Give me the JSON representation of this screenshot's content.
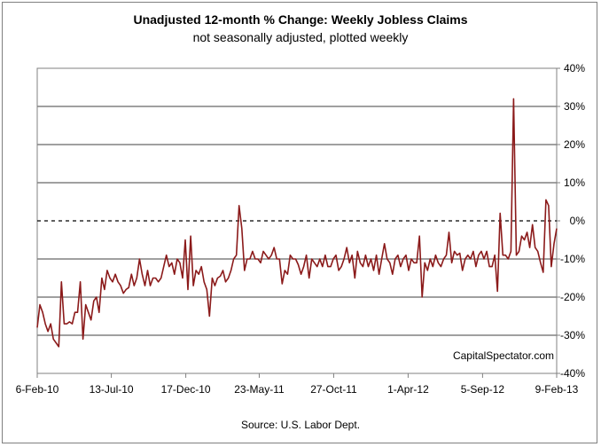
{
  "title": "Unadjusted 12-month %  Change: Weekly Jobless Claims",
  "subtitle": "not seasonally adjusted, plotted weekly",
  "source": "Source: U.S. Labor Dept.",
  "watermark": "CapitalSpectator.com",
  "colors": {
    "series": "#8B1A1A",
    "grid": "#000000",
    "zero_line": "#000000"
  },
  "chart_data": {
    "type": "line",
    "title": "Unadjusted 12-month %  Change: Weekly Jobless Claims",
    "subtitle": "not seasonally adjusted, plotted weekly",
    "xlabel": "",
    "ylabel": "",
    "ylim": [
      -40,
      40
    ],
    "y_ticks": [
      40,
      30,
      20,
      10,
      0,
      -10,
      -20,
      -30,
      -40
    ],
    "y_tick_labels": [
      "40%",
      "30%",
      "20%",
      "10%",
      "0%",
      "-10%",
      "-20%",
      "-30%",
      "-40%"
    ],
    "x_tick_labels": [
      "6-Feb-10",
      "13-Jul-10",
      "17-Dec-10",
      "23-May-11",
      "27-Oct-11",
      "1-Apr-12",
      "5-Sep-12",
      "9-Feb-13"
    ],
    "x_tick_weeks": [
      0,
      22.4,
      44.9,
      67.1,
      89.6,
      112.1,
      134.6,
      157
    ],
    "grid": true,
    "zero_line": "dashed",
    "legend": "none",
    "series": [
      {
        "values": [
          -28,
          -22,
          -24,
          -27,
          -29,
          -27,
          -31,
          -32,
          -33,
          -16,
          -27,
          -27,
          -26.5,
          -27,
          -24,
          -24,
          -16,
          -31,
          -22,
          -24,
          -26,
          -21,
          -20,
          -24,
          -15,
          -18,
          -13,
          -15,
          -16,
          -14,
          -16,
          -17,
          -19,
          -18,
          -17.5,
          -14,
          -17,
          -15,
          -10,
          -14,
          -17,
          -13,
          -17,
          -15,
          -15,
          -16,
          -15,
          -12,
          -9,
          -12,
          -11,
          -14,
          -10,
          -11,
          -15,
          -5,
          -18,
          -4,
          -17,
          -13,
          -14,
          -12,
          -16,
          -18,
          -25,
          -15,
          -17,
          -15,
          -14.5,
          -13,
          -16,
          -15,
          -13,
          -10,
          -9,
          4,
          -2,
          -13,
          -10,
          -10,
          -8,
          -10,
          -10,
          -11,
          -8,
          -9,
          -10,
          -9,
          -7,
          -10,
          -10,
          -16.5,
          -13,
          -14,
          -9,
          -10,
          -10,
          -11.5,
          -14,
          -12,
          -9,
          -15,
          -10,
          -11,
          -12,
          -10,
          -12,
          -9,
          -12,
          -12,
          -10,
          -9,
          -13,
          -12,
          -10,
          -7,
          -11,
          -9,
          -15,
          -8,
          -11,
          -12,
          -9,
          -12,
          -10,
          -13,
          -9,
          -14,
          -10,
          -6,
          -10,
          -11,
          -14,
          -10,
          -9,
          -12,
          -10,
          -9,
          -13,
          -10,
          -11,
          -11,
          -4,
          -20,
          -11,
          -13,
          -10,
          -12,
          -9,
          -11,
          -12,
          -10,
          -9,
          -3,
          -11,
          -8,
          -9,
          -8.5,
          -13,
          -10,
          -9,
          -10,
          -8,
          -12,
          -9,
          -8,
          -10,
          -8,
          -12,
          -12,
          -9,
          -18.5,
          2,
          -9,
          -9,
          -10,
          -8,
          32,
          -9,
          -8,
          -4,
          -5,
          -3,
          -7,
          -1,
          -7,
          -8,
          -11,
          -13.5,
          5.5,
          4,
          -12,
          -6,
          -2
        ]
      }
    ]
  }
}
